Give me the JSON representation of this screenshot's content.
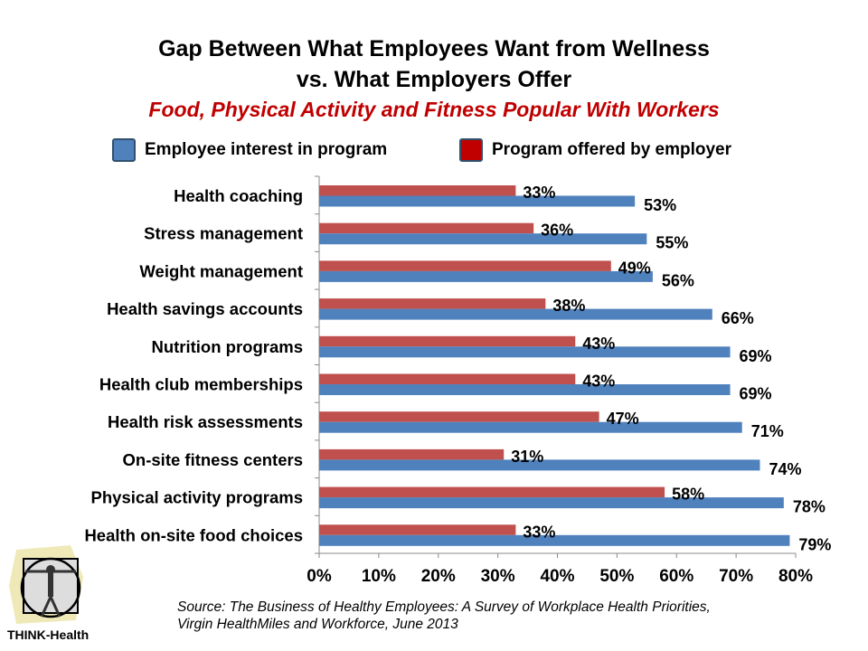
{
  "title_line1": "Gap Between What Employees Want from Wellness",
  "title_line2": "vs. What Employers Offer",
  "subtitle": "Food, Physical Activity and Fitness Popular With Workers",
  "source_line1": "Source: The Business of Healthy Employees: A Survey of Workplace Health Priorities,",
  "source_line2": "Virgin HealthMiles and Workforce, June 2013",
  "logo_text": "THINK-Health",
  "chart_data": {
    "type": "bar",
    "orientation": "horizontal",
    "categories": [
      "Health coaching",
      "Stress management",
      "Weight management",
      "Health savings accounts",
      "Nutrition programs",
      "Health club memberships",
      "Health risk assessments",
      "On-site fitness centers",
      "Physical activity programs",
      "Health on-site food choices"
    ],
    "series": [
      {
        "name": "Employee interest in program",
        "color": "#4f81bd",
        "values": [
          53,
          55,
          56,
          66,
          69,
          69,
          71,
          74,
          78,
          79
        ]
      },
      {
        "name": "Program offered by employer",
        "color": "#c0504d",
        "values": [
          33,
          36,
          49,
          38,
          43,
          43,
          47,
          31,
          58,
          33
        ]
      }
    ],
    "legend": {
      "position": "top",
      "entries": [
        "Employee interest in program",
        "Program offered by employer"
      ]
    },
    "xlim": [
      0,
      80
    ],
    "xticks": [
      "0%",
      "10%",
      "20%",
      "30%",
      "40%",
      "50%",
      "60%",
      "70%",
      "80%"
    ],
    "grid": false
  }
}
